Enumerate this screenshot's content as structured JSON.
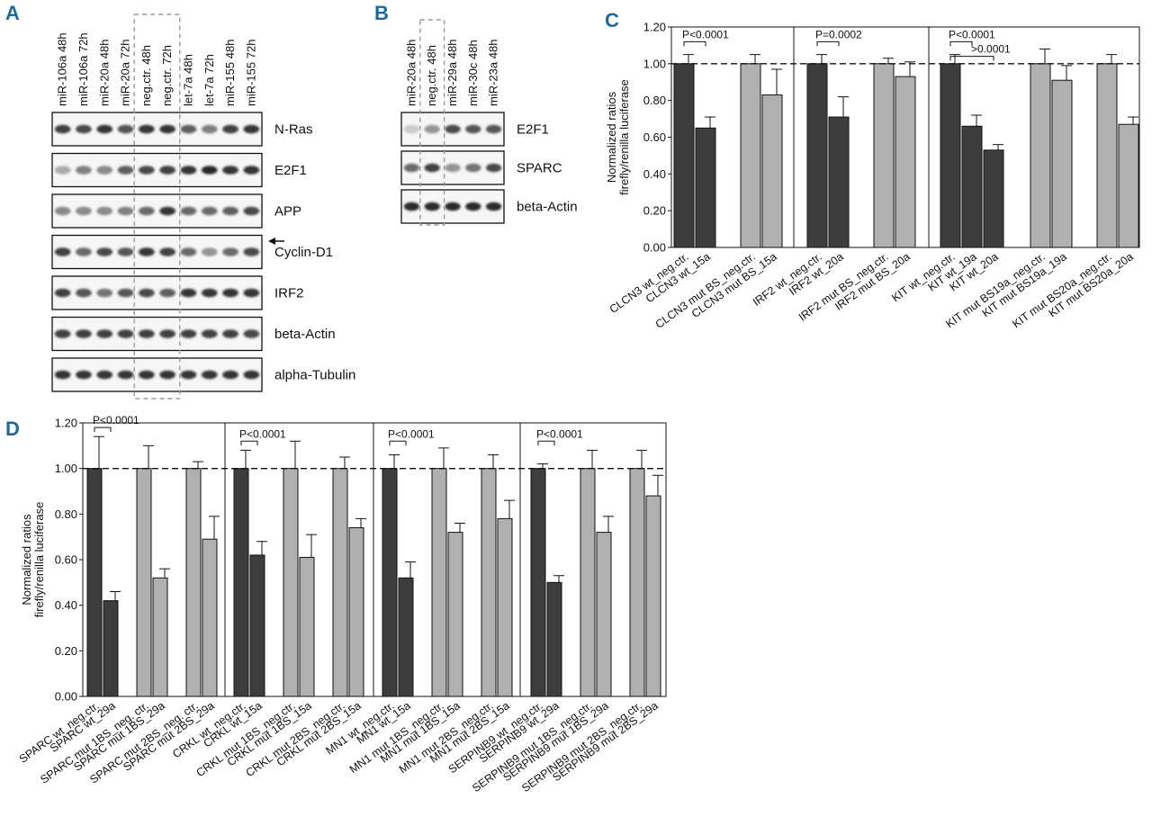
{
  "panel_labels": {
    "A": "A",
    "B": "B",
    "C": "C",
    "D": "D"
  },
  "panel_a": {
    "lanes": [
      "miR-106a 48h",
      "miR-106a 72h",
      "miR-20a 48h",
      "miR-20a 72h",
      "neg.ctr. 48h",
      "neg.ctr. 72h",
      "let-7a 48h",
      "let-7a 72h",
      "miR-155 48h",
      "miR-155 72h"
    ],
    "blots": [
      {
        "label": "N-Ras",
        "intensity": [
          0.8,
          0.75,
          0.85,
          0.7,
          0.85,
          0.85,
          0.65,
          0.5,
          0.8,
          0.85
        ]
      },
      {
        "label": "E2F1",
        "intensity": [
          0.3,
          0.5,
          0.45,
          0.65,
          0.75,
          0.8,
          0.85,
          0.9,
          0.85,
          0.85
        ]
      },
      {
        "label": "APP",
        "intensity": [
          0.45,
          0.45,
          0.45,
          0.5,
          0.6,
          0.85,
          0.6,
          0.6,
          0.65,
          0.75
        ]
      },
      {
        "label": "Cyclin-D1",
        "intensity": [
          0.8,
          0.6,
          0.75,
          0.7,
          0.85,
          0.8,
          0.6,
          0.4,
          0.6,
          0.75
        ]
      },
      {
        "label": "IRF2",
        "intensity": [
          0.8,
          0.7,
          0.55,
          0.7,
          0.75,
          0.65,
          0.85,
          0.85,
          0.85,
          0.85
        ]
      },
      {
        "label": "beta-Actin",
        "intensity": [
          0.8,
          0.8,
          0.8,
          0.8,
          0.8,
          0.8,
          0.8,
          0.8,
          0.8,
          0.75
        ]
      },
      {
        "label": "alpha-Tubulin",
        "intensity": [
          0.85,
          0.85,
          0.85,
          0.85,
          0.85,
          0.85,
          0.85,
          0.85,
          0.85,
          0.85
        ]
      }
    ]
  },
  "panel_b": {
    "lanes": [
      "miR-20a 48h",
      "neg.ctr. 48h",
      "miR-29a 48h",
      "miR-30c 48h",
      "miR-23a 48h"
    ],
    "blots": [
      {
        "label": "E2F1",
        "intensity": [
          0.15,
          0.4,
          0.75,
          0.7,
          0.7
        ]
      },
      {
        "label": "SPARC",
        "intensity": [
          0.6,
          0.8,
          0.4,
          0.55,
          0.75
        ]
      },
      {
        "label": "beta-Actin",
        "intensity": [
          0.9,
          0.9,
          0.9,
          0.9,
          0.9
        ]
      }
    ]
  },
  "chart_data": [
    {
      "type": "bar",
      "panel": "C",
      "ylabel": "Normalized ratios\nfirefly/renilla luciferase",
      "ylim": [
        0,
        1.2
      ],
      "yticks": [
        "0.00",
        "0.20",
        "0.40",
        "0.60",
        "0.80",
        "1.00",
        "1.20"
      ],
      "reference_line": 1.0,
      "groups": [
        {
          "bars": [
            {
              "label": "CLCN3 wt_neg.ctr.",
              "value": 1.0,
              "error": 0.05,
              "shade": "dark"
            },
            {
              "label": "CLCN3 wt_15a",
              "value": 0.65,
              "error": 0.06,
              "shade": "dark"
            },
            {
              "label": "CLCN3 mut BS_neg.ctr.",
              "value": 1.0,
              "error": 0.05,
              "shade": "light"
            },
            {
              "label": "CLCN3 mut BS_15a",
              "value": 0.83,
              "error": 0.14,
              "shade": "light"
            }
          ],
          "annotations": [
            {
              "text": "P<0.0001"
            }
          ]
        },
        {
          "bars": [
            {
              "label": "IRF2 wt_neg.ctr.",
              "value": 1.0,
              "error": 0.05,
              "shade": "dark"
            },
            {
              "label": "IRF2 wt_20a",
              "value": 0.71,
              "error": 0.11,
              "shade": "dark"
            },
            {
              "label": "IRF2 mut BS_neg.ctr.",
              "value": 1.0,
              "error": 0.03,
              "shade": "light"
            },
            {
              "label": "IRF2 mut BS_20a",
              "value": 0.93,
              "error": 0.08,
              "shade": "light"
            }
          ],
          "annotations": [
            {
              "text": "P=0.0002"
            }
          ]
        },
        {
          "bars": [
            {
              "label": "KIT wt_neg.ctr.",
              "value": 1.0,
              "error": 0.05,
              "shade": "dark"
            },
            {
              "label": "KIT wt_19a",
              "value": 0.66,
              "error": 0.06,
              "shade": "dark"
            },
            {
              "label": "KIT wt_20a",
              "value": 0.53,
              "error": 0.03,
              "shade": "dark"
            },
            {
              "label": "KIT mut BS19a_neg.ctr.",
              "value": 1.0,
              "error": 0.08,
              "shade": "light"
            },
            {
              "label": "KIT mut BS19a_19a",
              "value": 0.91,
              "error": 0.08,
              "shade": "light"
            },
            {
              "label": "KIT mut BS20a_neg.ctr.",
              "value": 1.0,
              "error": 0.05,
              "shade": "light"
            },
            {
              "label": "KIT mut BS20a_20a",
              "value": 0.67,
              "error": 0.04,
              "shade": "light"
            }
          ],
          "annotations": [
            {
              "text": "P<0.0001"
            },
            {
              "text": ">0.0001"
            }
          ]
        }
      ]
    },
    {
      "type": "bar",
      "panel": "D",
      "ylabel": "Normalized ratios\nfirefly/renilla luciferase",
      "ylim": [
        0,
        1.2
      ],
      "yticks": [
        "0.00",
        "0.20",
        "0.40",
        "0.60",
        "0.80",
        "1.00",
        "1.20"
      ],
      "reference_line": 1.0,
      "groups": [
        {
          "bars": [
            {
              "label": "SPARC wt_neg.ctr.",
              "value": 1.0,
              "error": 0.14,
              "shade": "dark"
            },
            {
              "label": "SPARC wt_29a",
              "value": 0.42,
              "error": 0.04,
              "shade": "dark"
            },
            {
              "label": "SPARC mut 1BS_neg. ctr.",
              "value": 1.0,
              "error": 0.1,
              "shade": "light"
            },
            {
              "label": "SPARC mut 1BS_29a",
              "value": 0.52,
              "error": 0.04,
              "shade": "light"
            },
            {
              "label": "SPARC mut 2BS_neg. ctr.",
              "value": 1.0,
              "error": 0.03,
              "shade": "light"
            },
            {
              "label": "SPARC mut 2BS_29a",
              "value": 0.69,
              "error": 0.1,
              "shade": "light"
            }
          ],
          "annotations": [
            {
              "text": "P<0.0001"
            }
          ]
        },
        {
          "bars": [
            {
              "label": "CRKL wt_neg.ctr.",
              "value": 1.0,
              "error": 0.08,
              "shade": "dark"
            },
            {
              "label": "CRKL wt_15a",
              "value": 0.62,
              "error": 0.06,
              "shade": "dark"
            },
            {
              "label": "CRKL mut 1BS_neg.ctr.",
              "value": 1.0,
              "error": 0.12,
              "shade": "light"
            },
            {
              "label": "CRKL mut 1BS_15a",
              "value": 0.61,
              "error": 0.1,
              "shade": "light"
            },
            {
              "label": "CRKL mut 2BS_neg.ctr.",
              "value": 1.0,
              "error": 0.05,
              "shade": "light"
            },
            {
              "label": "CRKL mut 2BS_15a",
              "value": 0.74,
              "error": 0.04,
              "shade": "light"
            }
          ],
          "annotations": [
            {
              "text": "P<0.0001"
            }
          ]
        },
        {
          "bars": [
            {
              "label": "MN1 wt_neg.ctr.",
              "value": 1.0,
              "error": 0.06,
              "shade": "dark"
            },
            {
              "label": "MN1 wt_15a",
              "value": 0.52,
              "error": 0.07,
              "shade": "dark"
            },
            {
              "label": "MN1 mut 1BS_neg.ctr.",
              "value": 1.0,
              "error": 0.09,
              "shade": "light"
            },
            {
              "label": "MN1 mut 1BS_15a",
              "value": 0.72,
              "error": 0.04,
              "shade": "light"
            },
            {
              "label": "MN1 mut 2BS_neg.ctr.",
              "value": 1.0,
              "error": 0.06,
              "shade": "light"
            },
            {
              "label": "MN1 mut 2BS_15a",
              "value": 0.78,
              "error": 0.08,
              "shade": "light"
            }
          ],
          "annotations": [
            {
              "text": "P<0.0001"
            }
          ]
        },
        {
          "bars": [
            {
              "label": "SERPINB9 wt_neg.ctr.",
              "value": 1.0,
              "error": 0.02,
              "shade": "dark"
            },
            {
              "label": "SERPINB9 wt_29a",
              "value": 0.5,
              "error": 0.03,
              "shade": "dark"
            },
            {
              "label": "SERPINB9 mut 1BS_neg.ctr.",
              "value": 1.0,
              "error": 0.08,
              "shade": "light"
            },
            {
              "label": "SERPINB9 mut 1BS_29a",
              "value": 0.72,
              "error": 0.07,
              "shade": "light"
            },
            {
              "label": "SERPINB9 mut 2BS_neg.ctr.",
              "value": 1.0,
              "error": 0.08,
              "shade": "light"
            },
            {
              "label": "SERPINB9 mut 2BS_29a",
              "value": 0.88,
              "error": 0.09,
              "shade": "light"
            }
          ],
          "annotations": [
            {
              "text": "P<0.0001"
            }
          ]
        }
      ]
    }
  ],
  "colors": {
    "dark": "#3d3d3d",
    "light": "#b0b0b0",
    "border": "#111111",
    "accent": "#1e6a9e",
    "dash_box": "#9a9a9a"
  }
}
